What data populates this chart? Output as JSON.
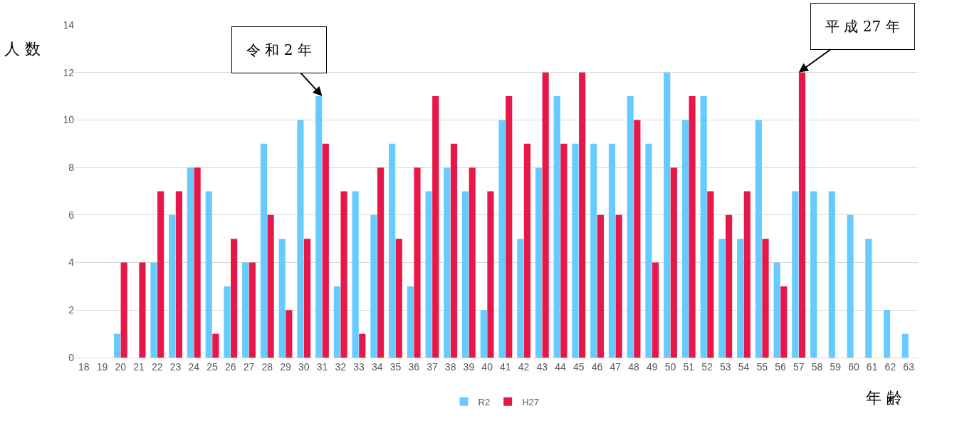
{
  "chart_data": {
    "type": "bar",
    "xlabel": "年 齢",
    "ylabel": "人 数",
    "categories": [
      "18",
      "19",
      "20",
      "21",
      "22",
      "23",
      "24",
      "25",
      "26",
      "27",
      "28",
      "29",
      "30",
      "31",
      "32",
      "33",
      "34",
      "35",
      "36",
      "37",
      "38",
      "39",
      "40",
      "41",
      "42",
      "43",
      "44",
      "45",
      "46",
      "47",
      "48",
      "49",
      "50",
      "51",
      "52",
      "53",
      "54",
      "55",
      "56",
      "57",
      "58",
      "59",
      "60",
      "61",
      "62",
      "63"
    ],
    "series": [
      {
        "name": "R2",
        "color": "#66ccff",
        "values": [
          0,
          0,
          1,
          0,
          4,
          6,
          8,
          7,
          3,
          4,
          9,
          5,
          10,
          11,
          3,
          7,
          6,
          9,
          3,
          7,
          8,
          7,
          2,
          10,
          5,
          8,
          11,
          9,
          9,
          9,
          11,
          9,
          12,
          10,
          11,
          5,
          5,
          10,
          4,
          7,
          7,
          7,
          6,
          5,
          2,
          1
        ]
      },
      {
        "name": "H27",
        "color": "#e8174a",
        "values": [
          0,
          0,
          4,
          4,
          7,
          7,
          8,
          1,
          5,
          4,
          6,
          2,
          5,
          9,
          7,
          1,
          8,
          5,
          8,
          11,
          9,
          8,
          7,
          11,
          9,
          12,
          9,
          12,
          6,
          6,
          10,
          4,
          8,
          11,
          7,
          6,
          7,
          5,
          3,
          12,
          0,
          0,
          0,
          0,
          0,
          0
        ]
      }
    ],
    "ylim": [
      0,
      14
    ],
    "yticks": [
      0,
      2,
      4,
      6,
      8,
      10,
      12,
      14
    ],
    "grid": "y",
    "legend": "bottom",
    "annotations": [
      {
        "text": "令 和 2 年",
        "x": "31",
        "y": 11
      },
      {
        "text": "平 成 27 年",
        "x": "57",
        "y": 12
      }
    ]
  }
}
